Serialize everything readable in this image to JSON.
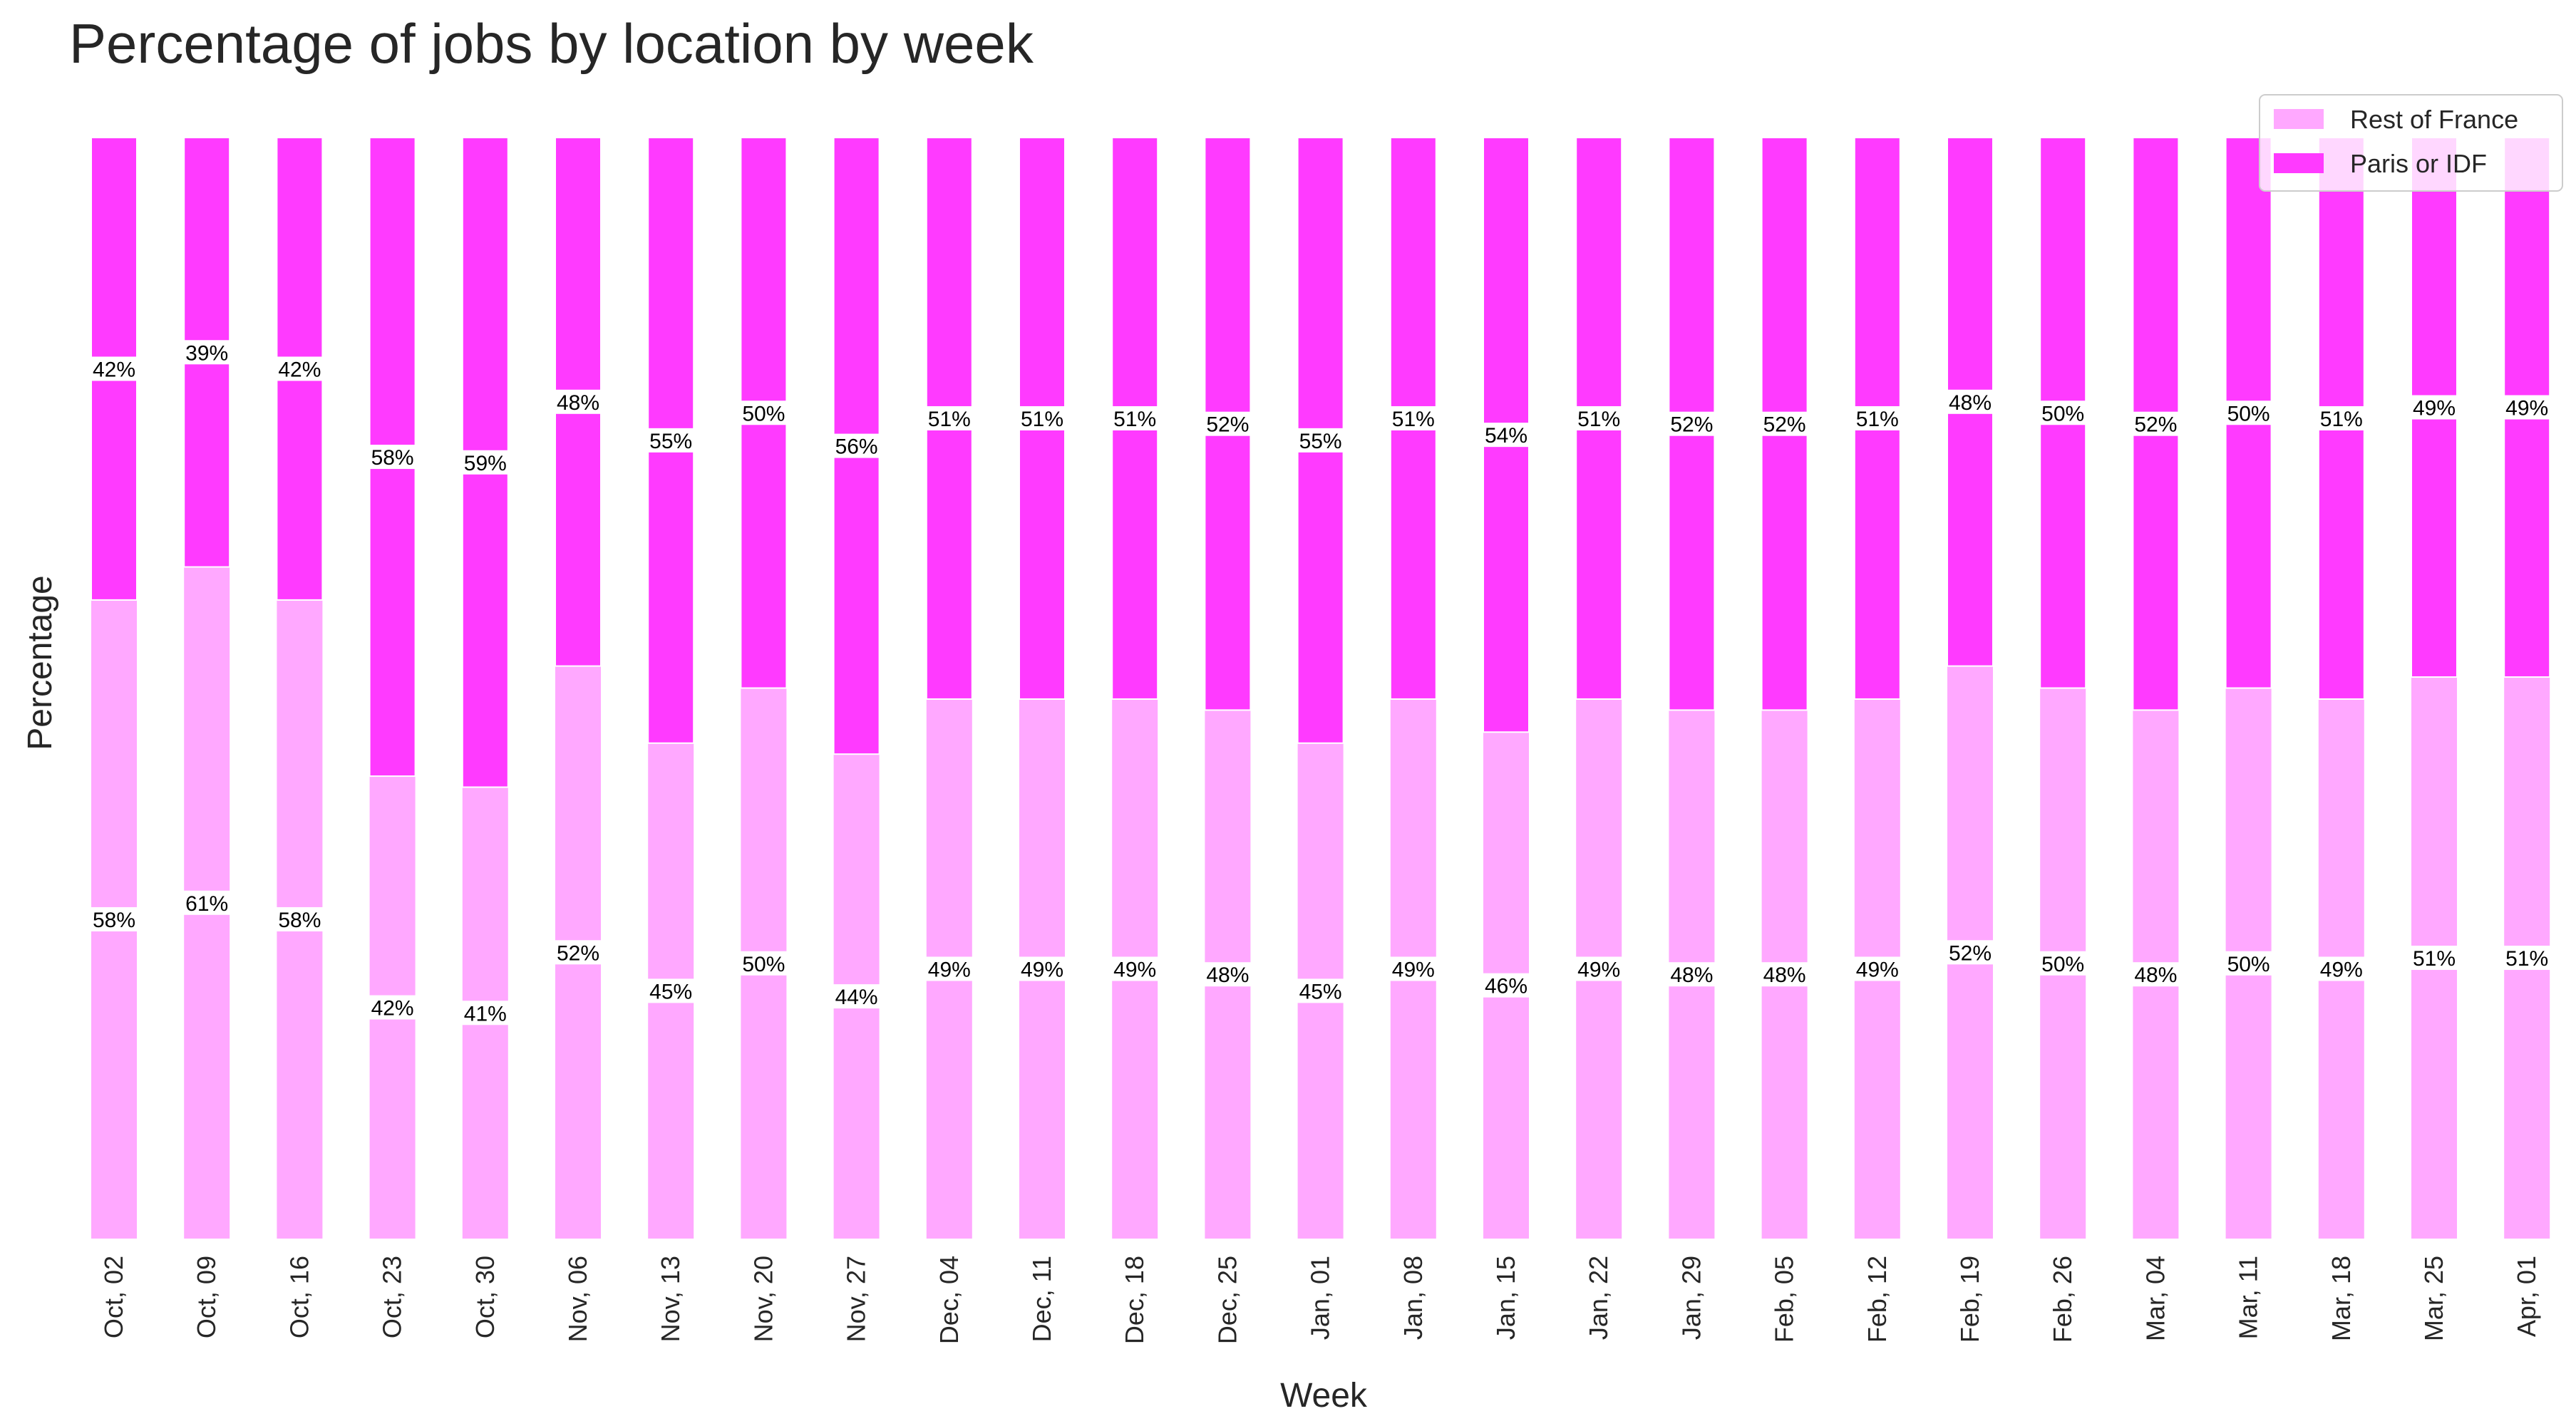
{
  "chart_data": {
    "type": "bar",
    "stacked": true,
    "title": "Percentage of jobs by location by week",
    "xlabel": "Week",
    "ylabel": "Percentage",
    "ylim": [
      0,
      100
    ],
    "grid": false,
    "legend_position": "top-right",
    "categories": [
      "Oct, 02",
      "Oct, 09",
      "Oct, 16",
      "Oct, 23",
      "Oct, 30",
      "Nov, 06",
      "Nov, 13",
      "Nov, 20",
      "Nov, 27",
      "Dec, 04",
      "Dec, 11",
      "Dec, 18",
      "Dec, 25",
      "Jan, 01",
      "Jan, 08",
      "Jan, 15",
      "Jan, 22",
      "Jan, 29",
      "Feb, 05",
      "Feb, 12",
      "Feb, 19",
      "Feb, 26",
      "Mar, 04",
      "Mar, 11",
      "Mar, 18",
      "Mar, 25",
      "Apr, 01"
    ],
    "series": [
      {
        "name": "Rest of France",
        "color": "#FFA8FF",
        "values": [
          58,
          61,
          58,
          42,
          41,
          52,
          45,
          50,
          44,
          49,
          49,
          49,
          48,
          45,
          49,
          46,
          49,
          48,
          48,
          49,
          52,
          50,
          48,
          50,
          49,
          51,
          51
        ]
      },
      {
        "name": "Paris or IDF",
        "color": "#FF3AFF",
        "values": [
          42,
          39,
          42,
          58,
          59,
          48,
          55,
          50,
          56,
          51,
          51,
          51,
          52,
          55,
          51,
          54,
          51,
          52,
          52,
          51,
          48,
          50,
          52,
          50,
          51,
          49,
          49
        ]
      }
    ],
    "value_suffix": "%"
  }
}
